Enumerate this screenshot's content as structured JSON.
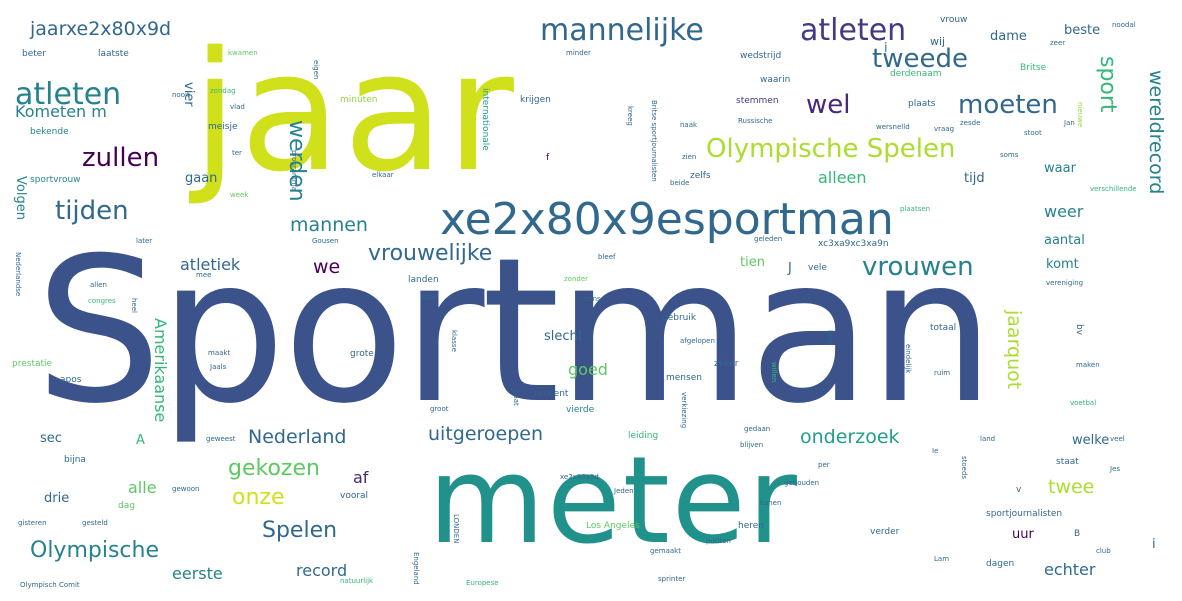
{
  "colors": {
    "background": "#ffffff",
    "palette": [
      "#3b528b",
      "#d0e11c",
      "#21918c",
      "#440154",
      "#5ec962",
      "#31688e",
      "#addc30",
      "#482878",
      "#26828e",
      "#35b779",
      "#90d743",
      "#443983",
      "#1f9e89",
      "#fde725"
    ]
  },
  "words": [
    {
      "text": "jaar",
      "color": "#d0e11c"
    },
    {
      "text": "Sportman",
      "color": "#3b528b"
    },
    {
      "text": "meter",
      "color": "#21918c"
    },
    {
      "text": "xe2x80x9esportman",
      "color": "#31688e"
    },
    {
      "text": "mannelijke",
      "color": "#31688e"
    },
    {
      "text": "atleten",
      "color": "#443983"
    },
    {
      "text": "atleten",
      "color": "#26828e"
    },
    {
      "text": "Olympische Spelen",
      "color": "#addc30"
    },
    {
      "text": "tweede",
      "color": "#31688e"
    },
    {
      "text": "wel",
      "color": "#482878"
    },
    {
      "text": "moeten",
      "color": "#31688e"
    },
    {
      "text": "zullen",
      "color": "#440154"
    },
    {
      "text": "tijden",
      "color": "#31688e"
    },
    {
      "text": "vrouwen",
      "color": "#26828e"
    },
    {
      "text": "vrouwelijke",
      "color": "#31688e"
    },
    {
      "text": "mannen",
      "color": "#26828e"
    },
    {
      "text": "werden",
      "color": "#26828e"
    },
    {
      "text": "jaarxe2x80x9d",
      "color": "#31688e"
    },
    {
      "text": "sport",
      "color": "#35b779"
    },
    {
      "text": "wereldrecord",
      "color": "#26828e"
    },
    {
      "text": "Kometen m",
      "color": "#26828e"
    },
    {
      "text": "we",
      "color": "#440154"
    },
    {
      "text": "atletiek",
      "color": "#31688e"
    },
    {
      "text": "gekozen",
      "color": "#5ec962"
    },
    {
      "text": "onze",
      "color": "#d0e11c"
    },
    {
      "text": "Spelen",
      "color": "#31688e"
    },
    {
      "text": "Olympische",
      "color": "#26828e"
    },
    {
      "text": "Nederland",
      "color": "#31688e"
    },
    {
      "text": "uitgeroepen",
      "color": "#31688e"
    },
    {
      "text": "onderzoek",
      "color": "#1f9e89"
    },
    {
      "text": "jaarquot",
      "color": "#addc30"
    },
    {
      "text": "twee",
      "color": "#addc30"
    },
    {
      "text": "record",
      "color": "#31688e"
    },
    {
      "text": "eerste",
      "color": "#26828e"
    },
    {
      "text": "echter",
      "color": "#31688e"
    },
    {
      "text": "Amerikaanse",
      "color": "#35b779"
    },
    {
      "text": "alleen",
      "color": "#35b779"
    },
    {
      "text": "weer",
      "color": "#26828e"
    },
    {
      "text": "aantal",
      "color": "#26828e"
    },
    {
      "text": "dame",
      "color": "#31688e"
    },
    {
      "text": "beste",
      "color": "#31688e"
    },
    {
      "text": "Volgen",
      "color": "#26828e"
    },
    {
      "text": "vier",
      "color": "#31688e"
    },
    {
      "text": "gaan",
      "color": "#31688e"
    },
    {
      "text": "tijd",
      "color": "#31688e"
    },
    {
      "text": "waar",
      "color": "#26828e"
    },
    {
      "text": "slecht",
      "color": "#31688e"
    },
    {
      "text": "goed",
      "color": "#5ec962"
    },
    {
      "text": "welke",
      "color": "#31688e"
    },
    {
      "text": "alle",
      "color": "#5ec962"
    },
    {
      "text": "af",
      "color": "#482878"
    },
    {
      "text": "drie",
      "color": "#31688e"
    },
    {
      "text": "sec",
      "color": "#31688e"
    },
    {
      "text": "uur",
      "color": "#440154"
    },
    {
      "text": "tien",
      "color": "#5ec962"
    },
    {
      "text": "komt",
      "color": "#26828e"
    },
    {
      "text": "wij",
      "color": "#31688e"
    },
    {
      "text": "A",
      "color": "#35b779"
    },
    {
      "text": "J",
      "color": "#31688e"
    },
    {
      "text": "i",
      "color": "#31688e"
    },
    {
      "text": "i",
      "color": "#26828e"
    },
    {
      "text": "krijgen",
      "color": "#31688e"
    },
    {
      "text": "minuten",
      "color": "#90d743"
    },
    {
      "text": "internationale",
      "color": "#1f9e89"
    },
    {
      "text": "plaats",
      "color": "#31688e"
    },
    {
      "text": "stemmen",
      "color": "#443983"
    },
    {
      "text": "waarin",
      "color": "#31688e"
    },
    {
      "text": "derdenaam",
      "color": "#35b779"
    },
    {
      "text": "wedstrijd",
      "color": "#31688e"
    },
    {
      "text": "Britse",
      "color": "#35b779"
    },
    {
      "text": "vrouw",
      "color": "#31688e"
    },
    {
      "text": "nieuwe",
      "color": "#90d743"
    },
    {
      "text": "meisje",
      "color": "#31688e"
    },
    {
      "text": "bekende",
      "color": "#26828e"
    },
    {
      "text": "laatste",
      "color": "#31688e"
    },
    {
      "text": "beter",
      "color": "#31688e"
    },
    {
      "text": "kwamen",
      "color": "#5ec962"
    },
    {
      "text": "sportvrouw",
      "color": "#26828e"
    },
    {
      "text": "zelfs",
      "color": "#31688e"
    },
    {
      "text": "kreeg",
      "color": "#31688e"
    },
    {
      "text": "xc3xa9xc3xa9n",
      "color": "#31688e"
    },
    {
      "text": "vele",
      "color": "#31688e"
    },
    {
      "text": "landen",
      "color": "#31688e"
    },
    {
      "text": "gebruik",
      "color": "#31688e"
    },
    {
      "text": "totaal",
      "color": "#31688e"
    },
    {
      "text": "lang",
      "color": "#31688e"
    },
    {
      "text": "bv",
      "color": "#31688e"
    },
    {
      "text": "maken",
      "color": "#31688e"
    },
    {
      "text": "zeker",
      "color": "#31688e"
    },
    {
      "text": "mensen",
      "color": "#31688e"
    },
    {
      "text": "procent",
      "color": "#31688e"
    },
    {
      "text": "vierde",
      "color": "#26828e"
    },
    {
      "text": "leiding",
      "color": "#35b779"
    },
    {
      "text": "grote",
      "color": "#31688e"
    },
    {
      "text": "klasse",
      "color": "#31688e"
    },
    {
      "text": "gaat",
      "color": "#31688e"
    },
    {
      "text": "willen",
      "color": "#35b779"
    },
    {
      "text": "prestatie",
      "color": "#5ec962"
    },
    {
      "text": "apos",
      "color": "#31688e"
    },
    {
      "text": "heel",
      "color": "#31688e"
    },
    {
      "text": "bijna",
      "color": "#31688e"
    },
    {
      "text": "staat",
      "color": "#31688e"
    },
    {
      "text": "verder",
      "color": "#31688e"
    },
    {
      "text": "kanen",
      "color": "#31688e"
    },
    {
      "text": "heren",
      "color": "#31688e"
    },
    {
      "text": "sportjournalisten",
      "color": "#31688e"
    },
    {
      "text": "Los Angeles",
      "color": "#5ec962"
    },
    {
      "text": "dagen",
      "color": "#31688e"
    },
    {
      "text": "vooral",
      "color": "#31688e"
    },
    {
      "text": "dag",
      "color": "#5ec962"
    },
    {
      "text": "sprinter",
      "color": "#31688e"
    },
    {
      "text": "LONDEN",
      "color": "#31688e"
    },
    {
      "text": "Olympisch Comit",
      "color": "#31688e"
    },
    {
      "text": "verkiezing",
      "color": "#31688e"
    },
    {
      "text": "gisteren",
      "color": "#31688e"
    },
    {
      "text": "Europese",
      "color": "#35b779"
    },
    {
      "text": "groot",
      "color": "#31688e"
    },
    {
      "text": "stoeds",
      "color": "#31688e"
    },
    {
      "text": "v",
      "color": "#31688e"
    },
    {
      "text": "B",
      "color": "#31688e"
    },
    {
      "text": "club",
      "color": "#31688e"
    },
    {
      "text": "nooit",
      "color": "#31688e"
    },
    {
      "text": "vlad",
      "color": "#31688e"
    },
    {
      "text": "ter",
      "color": "#31688e"
    },
    {
      "text": "week",
      "color": "#5ec962"
    },
    {
      "text": "eigen",
      "color": "#31688e"
    },
    {
      "text": "minder",
      "color": "#31688e"
    },
    {
      "text": "zeer",
      "color": "#31688e"
    },
    {
      "text": "Russische",
      "color": "#31688e"
    },
    {
      "text": "Jan",
      "color": "#31688e"
    },
    {
      "text": "soms",
      "color": "#31688e"
    },
    {
      "text": "verschillende",
      "color": "#35b779"
    },
    {
      "text": "vereniging",
      "color": "#31688e"
    },
    {
      "text": "gewoon",
      "color": "#31688e"
    },
    {
      "text": "zonder",
      "color": "#5ec962"
    },
    {
      "text": "gedaan",
      "color": "#31688e"
    },
    {
      "text": "blijven",
      "color": "#31688e"
    },
    {
      "text": "per",
      "color": "#31688e"
    },
    {
      "text": "Jes",
      "color": "#31688e"
    },
    {
      "text": "land",
      "color": "#31688e"
    },
    {
      "text": "gemaakt",
      "color": "#31688e"
    },
    {
      "text": "Jeden",
      "color": "#31688e"
    },
    {
      "text": "geweest",
      "color": "#31688e"
    },
    {
      "text": "gebouden",
      "color": "#31688e"
    },
    {
      "text": "punten",
      "color": "#31688e"
    },
    {
      "text": "ruim",
      "color": "#31688e"
    },
    {
      "text": "eindelijk",
      "color": "#31688e"
    },
    {
      "text": "natuurlijk",
      "color": "#35b779"
    },
    {
      "text": "Engeland",
      "color": "#31688e"
    },
    {
      "text": "gesteld",
      "color": "#31688e"
    },
    {
      "text": "Nederlandse",
      "color": "#31688e"
    },
    {
      "text": "allen",
      "color": "#31688e"
    },
    {
      "text": "congres",
      "color": "#35b779"
    },
    {
      "text": "zondag",
      "color": "#35b779"
    },
    {
      "text": "plaatsen",
      "color": "#35b779"
    },
    {
      "text": "programma",
      "color": "#31688e"
    },
    {
      "text": "xe2x80x9d",
      "color": "#31688e"
    },
    {
      "text": "Jaals",
      "color": "#31688e"
    },
    {
      "text": "maakt",
      "color": "#31688e"
    },
    {
      "text": "zien",
      "color": "#31688e"
    },
    {
      "text": "beide",
      "color": "#31688e"
    },
    {
      "text": "elkaar",
      "color": "#31688e"
    },
    {
      "text": "later",
      "color": "#31688e"
    },
    {
      "text": "Gousen",
      "color": "#31688e"
    },
    {
      "text": "afgelopen",
      "color": "#31688e"
    },
    {
      "text": "noodal",
      "color": "#31688e"
    },
    {
      "text": "naak",
      "color": "#31688e"
    },
    {
      "text": "wersnelld",
      "color": "#31688e"
    },
    {
      "text": "voetbal",
      "color": "#35b779"
    },
    {
      "text": "Britse sportjournalisten",
      "color": "#31688e"
    },
    {
      "text": "zesde",
      "color": "#31688e"
    },
    {
      "text": "vraag",
      "color": "#31688e"
    },
    {
      "text": "geleden",
      "color": "#31688e"
    },
    {
      "text": "stoot",
      "color": "#31688e"
    },
    {
      "text": "eens",
      "color": "#31688e"
    },
    {
      "text": "mee",
      "color": "#31688e"
    },
    {
      "text": "onze",
      "color": "#31688e"
    },
    {
      "text": "veel",
      "color": "#31688e"
    },
    {
      "text": "bleef",
      "color": "#31688e"
    },
    {
      "text": "Ie",
      "color": "#31688e"
    },
    {
      "text": "Lam",
      "color": "#31688e"
    },
    {
      "text": "f",
      "color": "#440154"
    }
  ]
}
